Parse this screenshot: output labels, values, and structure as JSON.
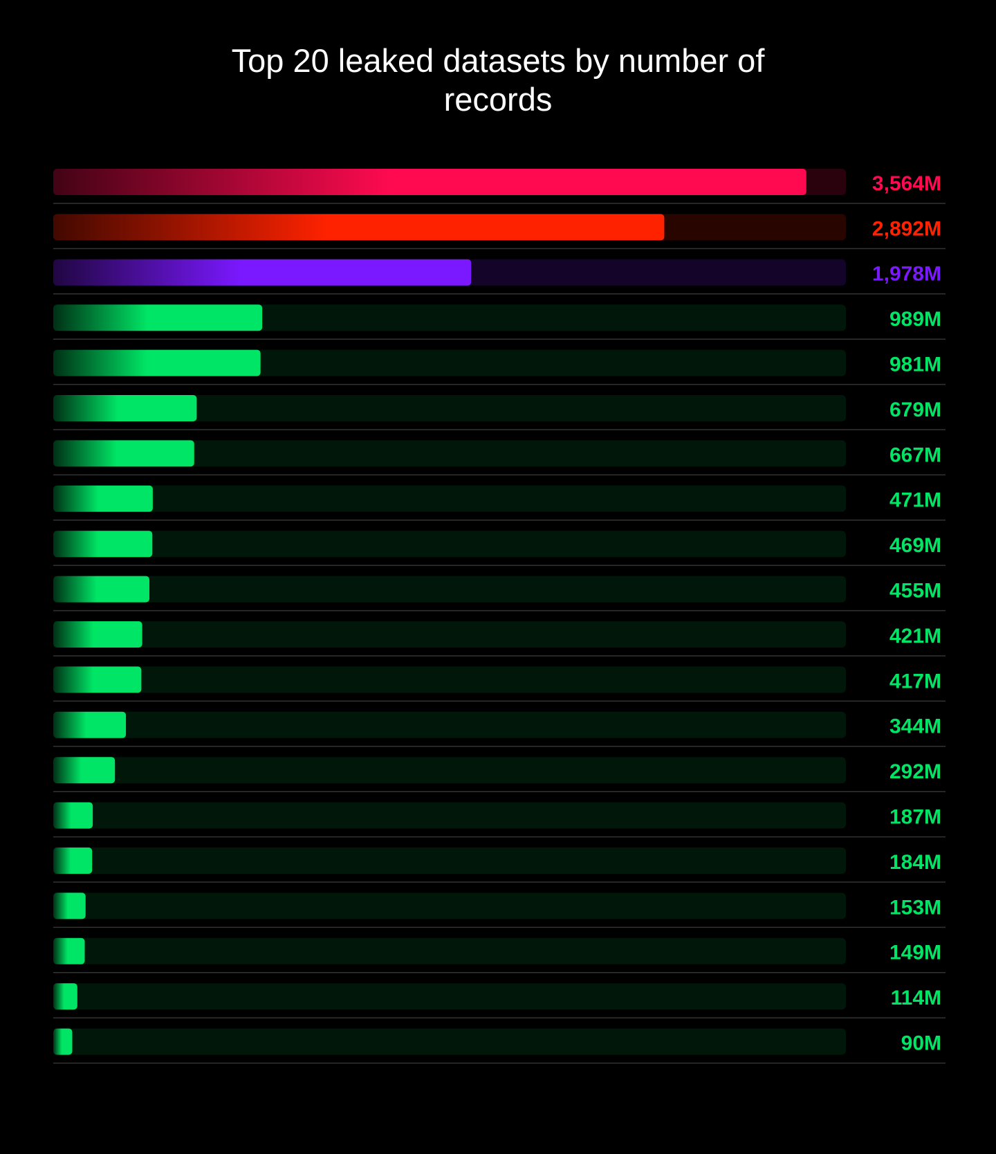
{
  "chart_data": {
    "type": "bar",
    "orientation": "horizontal",
    "title": "Top 20 leaked datasets by number of records",
    "categories": [
      null,
      null,
      null,
      null,
      null,
      null,
      null,
      null,
      null,
      null,
      null,
      null,
      null,
      null,
      null,
      null,
      null,
      null,
      null,
      null
    ],
    "values": [
      3564,
      2892,
      1978,
      989,
      981,
      679,
      667,
      471,
      469,
      455,
      421,
      417,
      344,
      292,
      187,
      184,
      153,
      149,
      114,
      90
    ],
    "value_labels": [
      "3,564M",
      "2,892M",
      "1,978M",
      "989M",
      "981M",
      "679M",
      "667M",
      "471M",
      "469M",
      "455M",
      "421M",
      "417M",
      "344M",
      "292M",
      "187M",
      "184M",
      "153M",
      "149M",
      "114M",
      "90M"
    ],
    "colors": [
      "#ff0a50",
      "#ff2200",
      "#7a18ff",
      "#00e565",
      "#00e565",
      "#00e565",
      "#00e565",
      "#00e565",
      "#00e565",
      "#00e565",
      "#00e565",
      "#00e565",
      "#00e565",
      "#00e565",
      "#00e565",
      "#00e565",
      "#00e565",
      "#00e565",
      "#00e565",
      "#00e565"
    ]
  }
}
